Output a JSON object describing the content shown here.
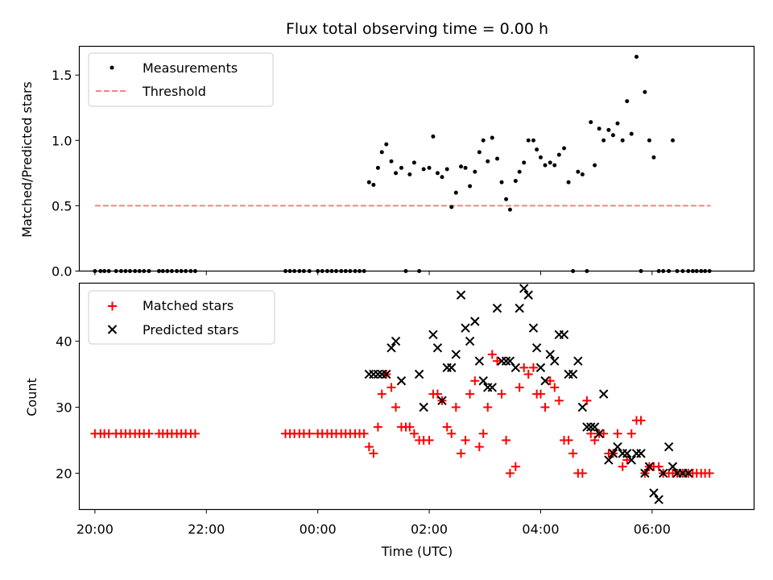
{
  "chart_data": [
    {
      "type": "scatter",
      "title": "Flux total observing time = 0.00 h",
      "ylabel": "Matched/Predicted stars",
      "xlabel": "",
      "ylim": [
        0,
        1.72
      ],
      "xlim_hours": [
        19.72,
        31.83
      ],
      "yticks": [
        0.0,
        0.5,
        1.0,
        1.5
      ],
      "yticklabels": [
        "0.0",
        "0.5",
        "1.0",
        "1.5"
      ],
      "grid": false,
      "legend_position": "upper-left",
      "legend": [
        "Measurements",
        "Threshold"
      ],
      "threshold": {
        "name": "Threshold",
        "y": 0.5,
        "x_start_hours": 20.0,
        "x_end_hours": 31.05,
        "color": "#ff8080"
      },
      "series": [
        {
          "name": "Measurements",
          "marker": "dot",
          "color": "#000000",
          "x_hours": [
            20.0,
            20.1,
            20.17,
            20.25,
            20.38,
            20.47,
            20.55,
            20.63,
            20.72,
            20.8,
            20.88,
            20.97,
            21.15,
            21.22,
            21.3,
            21.38,
            21.47,
            21.55,
            21.63,
            21.72,
            21.8,
            23.42,
            23.5,
            23.58,
            23.67,
            23.75,
            23.85,
            24.0,
            24.08,
            24.17,
            24.25,
            24.33,
            24.42,
            24.5,
            24.58,
            24.67,
            24.75,
            24.83,
            24.92,
            25.0,
            25.08,
            25.15,
            25.23,
            25.32,
            25.4,
            25.5,
            25.58,
            25.65,
            25.73,
            25.82,
            25.9,
            26.0,
            26.07,
            26.15,
            26.23,
            26.32,
            26.4,
            26.48,
            26.57,
            26.65,
            26.73,
            26.82,
            26.9,
            26.97,
            27.05,
            27.13,
            27.22,
            27.3,
            27.38,
            27.45,
            27.55,
            27.62,
            27.7,
            27.78,
            27.87,
            27.93,
            28.0,
            28.08,
            28.17,
            28.25,
            28.33,
            28.42,
            28.5,
            28.58,
            28.67,
            28.75,
            28.83,
            28.9,
            28.97,
            29.05,
            29.13,
            29.22,
            29.3,
            29.38,
            29.47,
            29.55,
            29.63,
            29.72,
            29.8,
            29.87,
            29.95,
            30.03,
            30.12,
            30.2,
            30.3,
            30.37,
            30.45,
            30.55,
            30.65,
            30.73,
            30.8,
            30.88,
            30.95,
            31.03
          ],
          "y": [
            0.0,
            0.0,
            0.0,
            0.0,
            0.0,
            0.0,
            0.0,
            0.0,
            0.0,
            0.0,
            0.0,
            0.0,
            0.0,
            0.0,
            0.0,
            0.0,
            0.0,
            0.0,
            0.0,
            0.0,
            0.0,
            0.0,
            0.0,
            0.0,
            0.0,
            0.0,
            0.0,
            0.0,
            0.0,
            0.0,
            0.0,
            0.0,
            0.0,
            0.0,
            0.0,
            0.0,
            0.0,
            0.0,
            0.68,
            0.66,
            0.79,
            0.91,
            0.97,
            0.84,
            0.75,
            0.79,
            0.0,
            0.74,
            0.83,
            0.0,
            0.78,
            0.79,
            1.03,
            0.75,
            0.72,
            0.78,
            0.49,
            0.6,
            0.8,
            0.79,
            0.65,
            0.76,
            0.91,
            1.0,
            0.84,
            1.02,
            0.86,
            0.68,
            0.55,
            0.47,
            0.69,
            0.76,
            0.83,
            1.0,
            1.0,
            0.93,
            0.87,
            0.81,
            0.83,
            0.81,
            0.89,
            0.94,
            0.68,
            0.0,
            0.76,
            0.74,
            0.0,
            1.14,
            0.81,
            1.09,
            1.0,
            1.08,
            1.04,
            1.13,
            1.0,
            1.3,
            1.05,
            1.64,
            0.0,
            1.37,
            1.0,
            0.87,
            0.0,
            0.0,
            0.0,
            1.0,
            0.0,
            0.0,
            0.0,
            0.0,
            0.0,
            0.0,
            0.0,
            0.0
          ]
        }
      ]
    },
    {
      "type": "scatter",
      "title": "",
      "ylabel": "Count",
      "xlabel": "Time (UTC)",
      "ylim": [
        14.5,
        48.8
      ],
      "xlim_hours": [
        19.72,
        31.83
      ],
      "xticks_hours": [
        20,
        22,
        24,
        26,
        28,
        30
      ],
      "xticklabels": [
        "20:00",
        "22:00",
        "00:00",
        "02:00",
        "04:00",
        "06:00"
      ],
      "yticks": [
        20,
        30,
        40
      ],
      "yticklabels": [
        "20",
        "30",
        "40"
      ],
      "grid": false,
      "legend_position": "upper-left",
      "legend": [
        "Matched stars",
        "Predicted stars"
      ],
      "series": [
        {
          "name": "Matched stars",
          "marker": "plus",
          "color": "#ff0000",
          "x_hours": [
            20.0,
            20.1,
            20.17,
            20.25,
            20.38,
            20.47,
            20.55,
            20.63,
            20.72,
            20.8,
            20.88,
            20.97,
            21.15,
            21.22,
            21.3,
            21.38,
            21.47,
            21.55,
            21.63,
            21.72,
            21.8,
            23.42,
            23.5,
            23.58,
            23.67,
            23.75,
            23.85,
            24.0,
            24.08,
            24.17,
            24.25,
            24.33,
            24.42,
            24.5,
            24.58,
            24.67,
            24.75,
            24.83,
            24.92,
            25.0,
            25.08,
            25.15,
            25.23,
            25.32,
            25.4,
            25.5,
            25.58,
            25.65,
            25.73,
            25.82,
            25.9,
            26.0,
            26.07,
            26.15,
            26.23,
            26.32,
            26.4,
            26.48,
            26.57,
            26.65,
            26.73,
            26.82,
            26.9,
            26.97,
            27.05,
            27.13,
            27.22,
            27.3,
            27.38,
            27.45,
            27.55,
            27.62,
            27.7,
            27.78,
            27.87,
            27.93,
            28.0,
            28.08,
            28.17,
            28.25,
            28.33,
            28.42,
            28.5,
            28.58,
            28.67,
            28.75,
            28.83,
            28.9,
            28.97,
            29.05,
            29.13,
            29.22,
            29.3,
            29.38,
            29.47,
            29.55,
            29.63,
            29.72,
            29.8,
            29.87,
            29.95,
            30.03,
            30.12,
            30.2,
            30.3,
            30.37,
            30.45,
            30.55,
            30.65,
            30.73,
            30.8,
            30.88,
            30.95,
            31.03
          ],
          "y": [
            26,
            26,
            26,
            26,
            26,
            26,
            26,
            26,
            26,
            26,
            26,
            26,
            26,
            26,
            26,
            26,
            26,
            26,
            26,
            26,
            26,
            26,
            26,
            26,
            26,
            26,
            26,
            26,
            26,
            26,
            26,
            26,
            26,
            26,
            26,
            26,
            26,
            26,
            24,
            23,
            27,
            32,
            35,
            33,
            30,
            27,
            27,
            27,
            26,
            25,
            25,
            25,
            32,
            32,
            31,
            27,
            26,
            30,
            23,
            25,
            32,
            34,
            24,
            26,
            30,
            38,
            37,
            32,
            25,
            20,
            21,
            33,
            36,
            35,
            36,
            32,
            32,
            30,
            34,
            33,
            31,
            25,
            25,
            23,
            20,
            20,
            31,
            26,
            25,
            26,
            26,
            23,
            23,
            26,
            21,
            22,
            26,
            28,
            28,
            20,
            21,
            21,
            21,
            20,
            20,
            20,
            20,
            20,
            20,
            20,
            20,
            20,
            20,
            20
          ]
        },
        {
          "name": "Predicted stars",
          "marker": "x",
          "color": "#000000",
          "x_hours": [
            24.92,
            25.0,
            25.08,
            25.15,
            25.23,
            25.32,
            25.4,
            25.5,
            25.82,
            25.9,
            26.07,
            26.15,
            26.23,
            26.32,
            26.4,
            26.48,
            26.57,
            26.65,
            26.73,
            26.82,
            26.9,
            26.97,
            27.05,
            27.13,
            27.22,
            27.3,
            27.38,
            27.45,
            27.55,
            27.62,
            27.7,
            27.78,
            27.87,
            27.93,
            28.0,
            28.08,
            28.17,
            28.25,
            28.33,
            28.42,
            28.5,
            28.58,
            28.67,
            28.75,
            28.83,
            28.9,
            28.97,
            29.05,
            29.13,
            29.22,
            29.3,
            29.38,
            29.47,
            29.55,
            29.63,
            29.72,
            29.8,
            29.87,
            29.95,
            30.03,
            30.12,
            30.2,
            30.3,
            30.37,
            30.45,
            30.55,
            30.65
          ],
          "y": [
            35,
            35,
            35,
            35,
            35,
            39,
            40,
            34,
            35,
            30,
            41,
            39,
            31,
            36,
            36,
            38,
            47,
            42,
            40,
            43,
            37,
            34,
            33,
            33,
            45,
            37,
            37,
            37,
            36,
            45,
            48,
            47,
            42,
            39,
            36,
            34,
            38,
            37,
            41,
            41,
            35,
            35,
            37,
            30,
            27,
            27,
            27,
            26,
            32,
            22,
            23,
            24,
            23,
            23,
            22,
            23,
            23,
            20,
            21,
            17,
            16,
            20,
            24,
            21,
            20,
            20,
            20
          ]
        }
      ]
    }
  ]
}
